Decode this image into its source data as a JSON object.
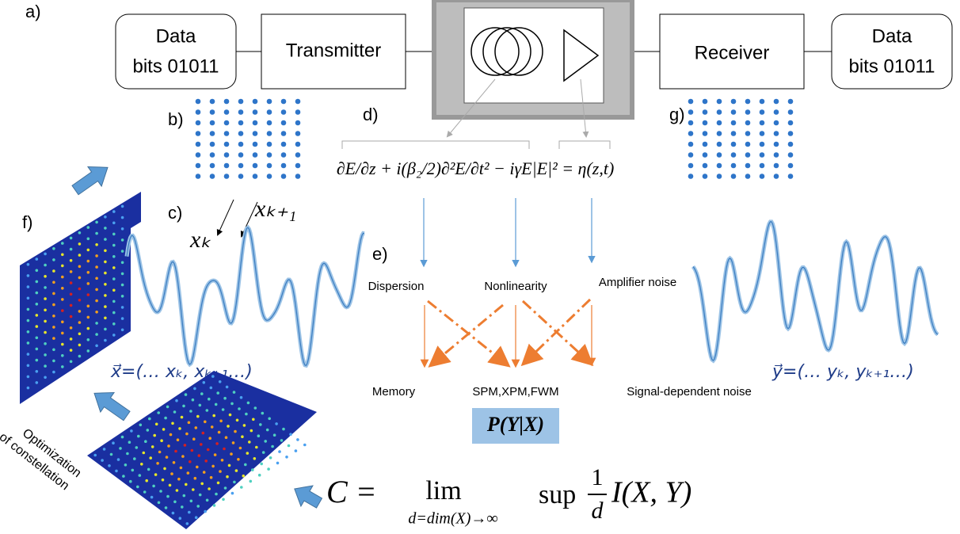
{
  "labels": {
    "a": "a)",
    "b": "b)",
    "c": "c)",
    "d": "d)",
    "e": "e)",
    "f": "f)",
    "g": "g)"
  },
  "blocks": {
    "source": {
      "line1": "Data",
      "line2": "bits 01011"
    },
    "transmitter": "Transmitter",
    "receiver": "Receiver",
    "sink": {
      "line1": "Data",
      "line2": "bits 01011"
    }
  },
  "symbols": {
    "xk": "xₖ",
    "xk1": "xₖ₊₁"
  },
  "equation": "∂E/∂z + i(β₂/2)∂²E/∂t² − iγE|E|² = η(z,t)",
  "effects": [
    "Dispersion",
    "Nonlinearity",
    "Amplifier noise"
  ],
  "outcomes": [
    "Memory",
    "SPM,XPM,FWM",
    "Signal-dependent noise"
  ],
  "channel": "P(Y|X)",
  "input_vector": "x⃗=(… xₖ, xₖ₊₁…)",
  "output_vector": "y⃗=(… yₖ, yₖ₊₁…)",
  "optimization": [
    "Optimization",
    "of constellation"
  ],
  "capacity": {
    "lhs": "C =",
    "lim": "lim",
    "limit_sub": "d=dim(X)→∞",
    "sup": "sup",
    "frac_num": "1",
    "frac_den": "d",
    "rhs": "I(X, Y)"
  }
}
